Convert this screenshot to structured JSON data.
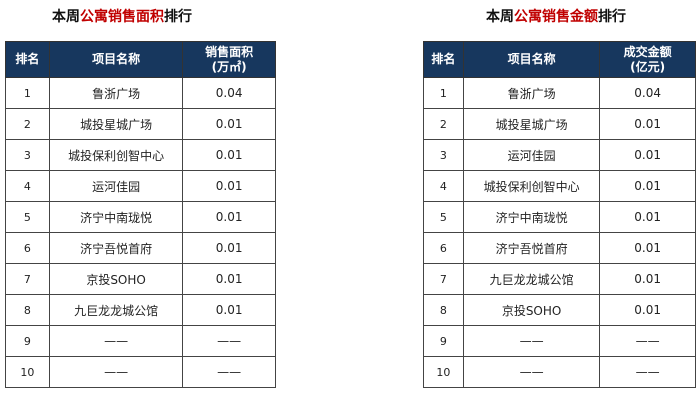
{
  "left": {
    "title_prefix": "本周",
    "title_highlight": "公寓销售面积",
    "title_suffix": "排行",
    "headers": {
      "rank": "排名",
      "name": "项目名称",
      "value_line1": "销售面积",
      "value_line2": "(万㎡)"
    },
    "rows": [
      {
        "rank": "1",
        "name": "鲁浙广场",
        "value": "0.04"
      },
      {
        "rank": "2",
        "name": "城投星城广场",
        "value": "0.01"
      },
      {
        "rank": "3",
        "name": "城投保利创智中心",
        "value": "0.01"
      },
      {
        "rank": "4",
        "name": "运河佳园",
        "value": "0.01"
      },
      {
        "rank": "5",
        "name": "济宁中南珑悦",
        "value": "0.01"
      },
      {
        "rank": "6",
        "name": "济宁吾悦首府",
        "value": "0.01"
      },
      {
        "rank": "7",
        "name": "京投SOHO",
        "value": "0.01"
      },
      {
        "rank": "8",
        "name": "九巨龙龙城公馆",
        "value": "0.01"
      },
      {
        "rank": "9",
        "name": "——",
        "value": "——"
      },
      {
        "rank": "10",
        "name": "——",
        "value": "——"
      }
    ]
  },
  "right": {
    "title_prefix": "本周",
    "title_highlight": "公寓销售金额",
    "title_suffix": "排行",
    "headers": {
      "rank": "排名",
      "name": "项目名称",
      "value_line1": "成交金额",
      "value_line2": "(亿元)"
    },
    "rows": [
      {
        "rank": "1",
        "name": "鲁浙广场",
        "value": "0.04"
      },
      {
        "rank": "2",
        "name": "城投星城广场",
        "value": "0.01"
      },
      {
        "rank": "3",
        "name": "运河佳园",
        "value": "0.01"
      },
      {
        "rank": "4",
        "name": "城投保利创智中心",
        "value": "0.01"
      },
      {
        "rank": "5",
        "name": "济宁中南珑悦",
        "value": "0.01"
      },
      {
        "rank": "6",
        "name": "济宁吾悦首府",
        "value": "0.01"
      },
      {
        "rank": "7",
        "name": "九巨龙龙城公馆",
        "value": "0.01"
      },
      {
        "rank": "8",
        "name": "京投SOHO",
        "value": "0.01"
      },
      {
        "rank": "9",
        "name": "——",
        "value": "——"
      },
      {
        "rank": "10",
        "name": "——",
        "value": "——"
      }
    ]
  },
  "colors": {
    "header_bg": "#17375e",
    "highlight": "#c00000"
  }
}
